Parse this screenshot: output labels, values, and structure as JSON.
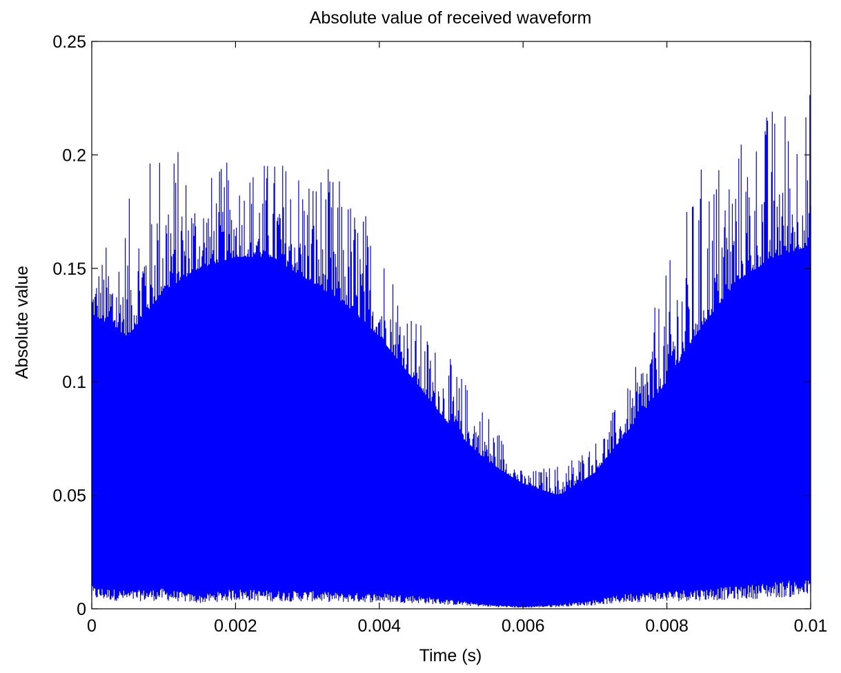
{
  "chart_data": {
    "type": "line",
    "title": "Absolute value of received waveform",
    "xlabel": "Time (s)",
    "ylabel": "Absolute value",
    "xlim": [
      0,
      0.01
    ],
    "ylim": [
      0,
      0.25
    ],
    "x_ticks": [
      {
        "value": 0,
        "label": "0"
      },
      {
        "value": 0.002,
        "label": "0.002"
      },
      {
        "value": 0.004,
        "label": "0.004"
      },
      {
        "value": 0.006,
        "label": "0.006"
      },
      {
        "value": 0.008,
        "label": "0.008"
      },
      {
        "value": 0.01,
        "label": "0.01"
      }
    ],
    "y_ticks": [
      {
        "value": 0,
        "label": "0"
      },
      {
        "value": 0.05,
        "label": "0.05"
      },
      {
        "value": 0.1,
        "label": "0.1"
      },
      {
        "value": 0.15,
        "label": "0.15"
      },
      {
        "value": 0.2,
        "label": "0.2"
      },
      {
        "value": 0.25,
        "label": "0.25"
      }
    ],
    "grid": false,
    "series": [
      {
        "color": "#0000ff",
        "envelope": {
          "x": [
            0,
            0.0005,
            0.001,
            0.0015,
            0.002,
            0.0025,
            0.003,
            0.0035,
            0.004,
            0.0045,
            0.005,
            0.0055,
            0.006,
            0.0065,
            0.007,
            0.0075,
            0.008,
            0.0085,
            0.009,
            0.0095,
            0.01
          ],
          "upper": [
            0.13,
            0.12,
            0.14,
            0.15,
            0.155,
            0.155,
            0.145,
            0.135,
            0.12,
            0.1,
            0.08,
            0.065,
            0.055,
            0.05,
            0.06,
            0.08,
            0.1,
            0.125,
            0.145,
            0.155,
            0.16
          ],
          "peaks": [
            0.15,
            0.18,
            0.216,
            0.19,
            0.2,
            0.2,
            0.203,
            0.19,
            0.17,
            0.13,
            0.11,
            0.09,
            0.06,
            0.065,
            0.075,
            0.1,
            0.15,
            0.2,
            0.21,
            0.226,
            0.231
          ],
          "lower": [
            0.01,
            0.008,
            0.009,
            0.006,
            0.009,
            0.008,
            0.008,
            0.007,
            0.007,
            0.006,
            0.004,
            0.002,
            0.001,
            0.002,
            0.004,
            0.007,
            0.008,
            0.009,
            0.01,
            0.012,
            0.013
          ]
        }
      }
    ]
  }
}
